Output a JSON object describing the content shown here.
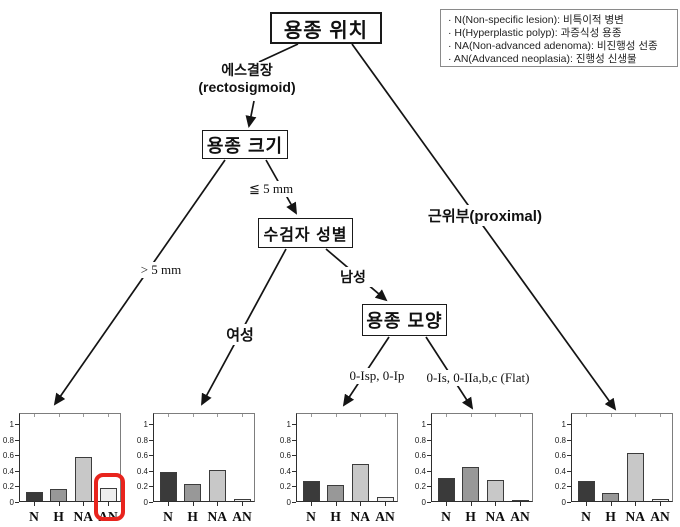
{
  "figure": {
    "root_label": "용종 위치",
    "legend_items": [
      "· N(Non-specific lesion): 비특이적 병변",
      "· H(Hyperplastic polyp): 과증식성 용종",
      "· NA(Non-advanced adenoma): 비진행성 선종",
      "· AN(Advanced neoplasia): 진행성 신생물"
    ],
    "nodes": {
      "size_label": "용종 크기",
      "gender_label": "수검자 성별",
      "shape_label": "용종 모양"
    },
    "edges": {
      "rectosigmoid_line1": "에스결장",
      "rectosigmoid_line2": "(rectosigmoid)",
      "proximal": "근위부(proximal)",
      "gt5mm": "> 5 mm",
      "le5mm": "≦ 5 mm",
      "female": "여성",
      "male": "남성",
      "shape_pedunculated": "0-Isp, 0-Ip",
      "shape_flat": "0-Is, 0-IIa,b,c (Flat)"
    }
  },
  "chart_data": [
    {
      "type": "bar",
      "name": "greater-than-5mm",
      "branch_label": "> 5 mm",
      "categories": [
        "N",
        "H",
        "NA",
        "AN"
      ],
      "values": [
        0.12,
        0.16,
        0.57,
        0.17
      ],
      "yticks": [
        0,
        0.2,
        0.4,
        0.6,
        0.8,
        1
      ],
      "ytick_labels": [
        "0",
        "0.2",
        "0.4",
        "0.6",
        "0.8",
        "1"
      ],
      "ylim": [
        0,
        1.14
      ],
      "highlight_index": 3
    },
    {
      "type": "bar",
      "name": "female",
      "branch_label": "여성",
      "categories": [
        "N",
        "H",
        "NA",
        "AN"
      ],
      "values": [
        0.37,
        0.22,
        0.4,
        0.02
      ],
      "yticks": [
        0,
        0.2,
        0.4,
        0.6,
        0.8,
        1
      ],
      "ytick_labels": [
        "0",
        "0.2",
        "0.4",
        "0.6",
        "0.8",
        "1"
      ],
      "ylim": [
        0,
        1.14
      ]
    },
    {
      "type": "bar",
      "name": "shape-0-Isp-0-Ip",
      "branch_label": "0-Isp, 0-Ip",
      "categories": [
        "N",
        "H",
        "NA",
        "AN"
      ],
      "values": [
        0.25,
        0.21,
        0.48,
        0.05
      ],
      "yticks": [
        0,
        0.2,
        0.4,
        0.6,
        0.8,
        1
      ],
      "ytick_labels": [
        "0",
        "0.2",
        "0.4",
        "0.6",
        "0.8",
        "1"
      ],
      "ylim": [
        0,
        1.14
      ]
    },
    {
      "type": "bar",
      "name": "shape-flat",
      "branch_label": "0-Is, 0-IIa,b,c (Flat)",
      "categories": [
        "N",
        "H",
        "NA",
        "AN"
      ],
      "values": [
        0.3,
        0.43,
        0.27,
        0.01
      ],
      "yticks": [
        0,
        0.2,
        0.4,
        0.6,
        0.8,
        1
      ],
      "ytick_labels": [
        "0",
        "0.2",
        "0.4",
        "0.6",
        "0.8",
        "1"
      ],
      "ylim": [
        0,
        1.14
      ]
    },
    {
      "type": "bar",
      "name": "proximal",
      "branch_label": "근위부(proximal)",
      "categories": [
        "N",
        "H",
        "NA",
        "AN"
      ],
      "values": [
        0.26,
        0.1,
        0.62,
        0.02
      ],
      "yticks": [
        0,
        0.2,
        0.4,
        0.6,
        0.8,
        1
      ],
      "ytick_labels": [
        "0",
        "0.2",
        "0.4",
        "0.6",
        "0.8",
        "1"
      ],
      "ylim": [
        0,
        1.14
      ]
    }
  ],
  "colors": {
    "bar_palette": [
      "#3a3a3a",
      "#989898",
      "#c8c8c8",
      "#ededed"
    ],
    "highlight": "#e8241d",
    "line": "#141414",
    "frame": "#7d7d7d"
  }
}
